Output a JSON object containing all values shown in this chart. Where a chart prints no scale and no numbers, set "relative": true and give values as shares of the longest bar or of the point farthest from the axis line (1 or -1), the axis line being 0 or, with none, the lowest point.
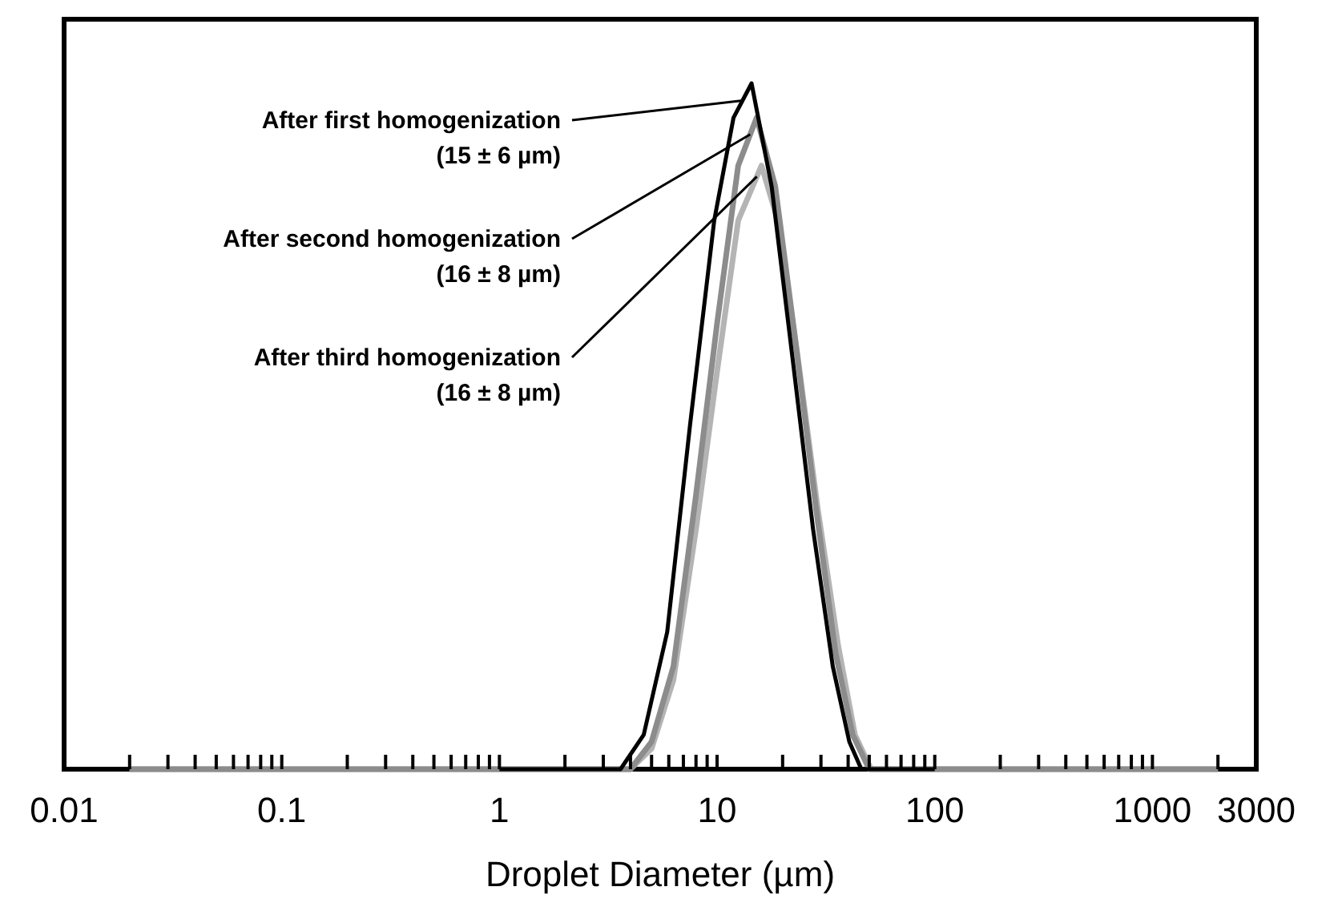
{
  "chart_data": {
    "type": "line",
    "relative": true,
    "xlabel": "Droplet Diameter (µm)",
    "log": "x",
    "xlim": [
      0.01,
      3000
    ],
    "xticks": [
      0.01,
      {
        "value": 0.02,
        "label": null
      },
      {
        "value": 0.03,
        "label": null
      },
      {
        "value": 0.04,
        "label": null
      },
      {
        "value": 0.05,
        "label": null
      },
      {
        "value": 0.06,
        "label": null
      },
      {
        "value": 0.07,
        "label": null
      },
      {
        "value": 0.08,
        "label": null
      },
      {
        "value": 0.09,
        "label": null
      },
      0.1,
      {
        "value": 0.2,
        "label": null
      },
      {
        "value": 0.3,
        "label": null
      },
      {
        "value": 0.4,
        "label": null
      },
      {
        "value": 0.5,
        "label": null
      },
      {
        "value": 0.6,
        "label": null
      },
      {
        "value": 0.7,
        "label": null
      },
      {
        "value": 0.8,
        "label": null
      },
      {
        "value": 0.9,
        "label": null
      },
      1,
      {
        "value": 2,
        "label": null
      },
      {
        "value": 3,
        "label": null
      },
      {
        "value": 4,
        "label": null
      },
      {
        "value": 5,
        "label": null
      },
      {
        "value": 6,
        "label": null
      },
      {
        "value": 7,
        "label": null
      },
      {
        "value": 8,
        "label": null
      },
      {
        "value": 9,
        "label": null
      },
      10,
      {
        "value": 20,
        "label": null
      },
      {
        "value": 30,
        "label": null
      },
      {
        "value": 40,
        "label": null
      },
      {
        "value": 50,
        "label": null
      },
      {
        "value": 60,
        "label": null
      },
      {
        "value": 70,
        "label": null
      },
      {
        "value": 80,
        "label": null
      },
      {
        "value": 90,
        "label": null
      },
      100,
      {
        "value": 200,
        "label": null
      },
      {
        "value": 300,
        "label": null
      },
      {
        "value": 400,
        "label": null
      },
      {
        "value": 500,
        "label": null
      },
      {
        "value": 600,
        "label": null
      },
      {
        "value": 700,
        "label": null
      },
      {
        "value": 800,
        "label": null
      },
      {
        "value": 900,
        "label": null
      },
      1000,
      {
        "value": 2000,
        "label": null
      },
      3000
    ],
    "grid": false,
    "marker": "none",
    "line_style": "solid",
    "annotations": [
      "After first homogenization (15 ± 6 µm)",
      "After second homogenization (16 ± 8 µm)",
      "After third homogenization (16 ± 8 µm)"
    ],
    "series": [
      {
        "color": "#000000",
        "x": [
          1,
          3.6,
          4.6,
          5.9,
          7.5,
          9.7,
          11.9,
          14.4,
          17.8,
          22.2,
          27.6,
          34,
          40.5,
          46,
          100
        ],
        "values": [
          0,
          0,
          0.05,
          0.2,
          0.5,
          0.8,
          0.95,
          1,
          0.85,
          0.6,
          0.35,
          0.15,
          0.04,
          0,
          0
        ]
      },
      {
        "color": "#8c8c8c",
        "x": [
          0.02,
          4,
          5,
          6.3,
          8,
          10,
          12.5,
          15.2,
          18.5,
          23,
          28.5,
          35,
          42,
          50,
          2000
        ],
        "values": [
          0,
          0,
          0.04,
          0.15,
          0.4,
          0.65,
          0.88,
          0.95,
          0.85,
          0.62,
          0.38,
          0.17,
          0.05,
          0,
          0
        ]
      },
      {
        "color": "#b4b4b4",
        "x": [
          0.02,
          4,
          5,
          6.3,
          8,
          10,
          12.5,
          16,
          19,
          23.5,
          29,
          36,
          43,
          51,
          2000
        ],
        "values": [
          0,
          0,
          0.03,
          0.13,
          0.35,
          0.58,
          0.8,
          0.88,
          0.8,
          0.6,
          0.38,
          0.18,
          0.05,
          0,
          0
        ]
      }
    ]
  }
}
